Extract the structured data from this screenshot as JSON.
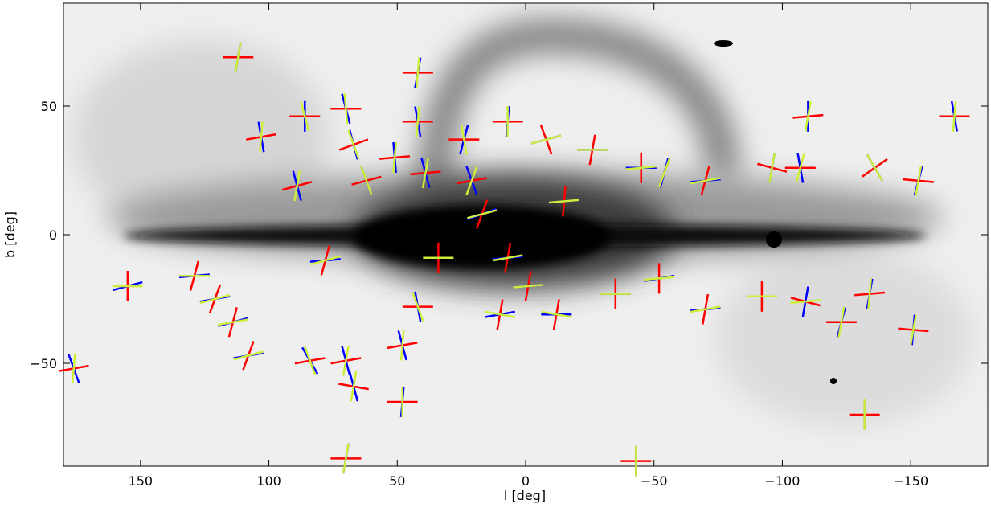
{
  "chart_data": {
    "type": "vectors",
    "xlabel": "l [deg]",
    "ylabel": "b [deg]",
    "xlim": [
      180,
      -180
    ],
    "xticks": [
      150,
      100,
      50,
      0,
      {
        "value": -50,
        "label": "−50"
      },
      {
        "value": -100,
        "label": "−100"
      },
      {
        "value": -150,
        "label": "−150"
      }
    ],
    "ylim": [
      -90,
      90
    ],
    "yticks": [
      {
        "value": -50,
        "label": "−50"
      },
      0,
      50
    ],
    "series": [
      {
        "color": "#ff0000",
        "x": [
          112,
          176,
          155,
          129,
          121,
          114,
          108,
          103,
          86,
          89,
          78,
          70,
          67,
          62,
          51,
          42,
          42,
          39,
          24,
          21,
          7,
          -8,
          -26,
          -45,
          -54,
          -70,
          -96,
          -107,
          -110,
          -136,
          -153,
          -167,
          34,
          7,
          17,
          -15,
          -1,
          -12,
          -35,
          -52,
          -70,
          -92,
          -109,
          -123,
          -134,
          -151,
          -132,
          -43,
          70,
          70,
          48,
          48,
          42,
          84,
          67,
          10
        ],
        "y": [
          69,
          -52,
          -20,
          -16,
          -25,
          -34,
          -47,
          38,
          46,
          19,
          -10,
          49,
          35,
          21,
          30,
          44,
          63,
          24,
          37,
          21,
          44,
          37,
          33,
          26,
          24,
          21,
          26,
          26,
          46,
          26,
          21,
          46,
          -9,
          -9,
          8,
          13,
          -20,
          -31,
          -23,
          -17,
          -29,
          -24,
          -26,
          -34,
          -23,
          -37,
          -70,
          -88,
          -87,
          -49,
          -43,
          -65,
          -28,
          -49,
          -59,
          -31
        ],
        "angle": [
          0,
          10,
          90,
          75,
          70,
          75,
          70,
          10,
          0,
          15,
          75,
          0,
          20,
          15,
          5,
          0,
          0,
          5,
          0,
          10,
          0,
          -70,
          80,
          90,
          70,
          75,
          -15,
          0,
          5,
          35,
          -5,
          0,
          90,
          80,
          70,
          85,
          80,
          80,
          90,
          90,
          80,
          90,
          -15,
          0,
          5,
          -5,
          0,
          0,
          0,
          10,
          10,
          0,
          0,
          10,
          -10,
          80
        ]
      },
      {
        "color": "#0000ff",
        "x": [
          112,
          176,
          155,
          129,
          121,
          114,
          108,
          103,
          86,
          89,
          78,
          70,
          67,
          62,
          51,
          42,
          42,
          39,
          24,
          21,
          7,
          -8,
          -26,
          -45,
          -54,
          -70,
          -96,
          -107,
          -110,
          -136,
          -153,
          -167,
          34,
          7,
          17,
          -15,
          -1,
          -12,
          -35,
          -52,
          -70,
          -92,
          -109,
          -123,
          -134,
          -151,
          -132,
          -43,
          70,
          70,
          48,
          48,
          42,
          84,
          67,
          10
        ],
        "y": [
          69,
          -52,
          -20,
          -16,
          -25,
          -34,
          -47,
          38,
          46,
          19,
          -10,
          49,
          35,
          21,
          30,
          44,
          63,
          24,
          37,
          21,
          44,
          37,
          33,
          26,
          24,
          21,
          26,
          26,
          46,
          26,
          21,
          46,
          -9,
          -9,
          8,
          13,
          -20,
          -31,
          -23,
          -17,
          -29,
          -24,
          -26,
          -34,
          -23,
          -37,
          -70,
          -88,
          -87,
          -49,
          -43,
          -65,
          -28,
          -49,
          -59,
          -31
        ],
        "angle": [
          80,
          -70,
          15,
          5,
          10,
          15,
          10,
          -80,
          90,
          -75,
          5,
          -75,
          -75,
          -70,
          -85,
          -80,
          80,
          -75,
          75,
          -70,
          85,
          15,
          0,
          0,
          75,
          5,
          80,
          -80,
          90,
          -60,
          75,
          -80,
          0,
          5,
          20,
          5,
          5,
          0,
          0,
          10,
          5,
          0,
          80,
          75,
          80,
          85,
          90,
          90,
          80,
          -75,
          -75,
          85,
          -80,
          -60,
          -75,
          10
        ]
      },
      {
        "color": "#ccf03a",
        "x": [
          112,
          176,
          155,
          129,
          121,
          114,
          108,
          103,
          86,
          89,
          78,
          70,
          67,
          62,
          51,
          42,
          42,
          39,
          24,
          21,
          7,
          -8,
          -26,
          -45,
          -54,
          -70,
          -96,
          -107,
          -110,
          -136,
          -153,
          -167,
          34,
          7,
          17,
          -15,
          -1,
          -12,
          -35,
          -52,
          -70,
          -92,
          -109,
          -123,
          -134,
          -151,
          -132,
          -43,
          70,
          70,
          48,
          48,
          42,
          84,
          67,
          10
        ],
        "y": [
          69,
          -52,
          -20,
          -16,
          -25,
          -34,
          -47,
          38,
          46,
          19,
          -10,
          49,
          35,
          21,
          30,
          44,
          63,
          24,
          37,
          21,
          44,
          37,
          33,
          26,
          24,
          21,
          26,
          26,
          46,
          26,
          21,
          46,
          -9,
          -9,
          8,
          13,
          -20,
          -31,
          -23,
          -17,
          -29,
          -24,
          -26,
          -34,
          -23,
          -37,
          -70,
          -88,
          -87,
          -49,
          -43,
          -65,
          -28,
          -49,
          -59,
          -31
        ],
        "angle": [
          80,
          85,
          0,
          0,
          15,
          10,
          15,
          85,
          -75,
          80,
          15,
          -85,
          -70,
          -70,
          85,
          85,
          85,
          80,
          -80,
          70,
          90,
          15,
          0,
          5,
          70,
          10,
          80,
          75,
          80,
          -60,
          80,
          85,
          0,
          10,
          15,
          5,
          5,
          -10,
          0,
          5,
          10,
          0,
          5,
          80,
          85,
          80,
          90,
          90,
          80,
          80,
          85,
          90,
          -70,
          -70,
          80,
          -10
        ]
      }
    ]
  }
}
